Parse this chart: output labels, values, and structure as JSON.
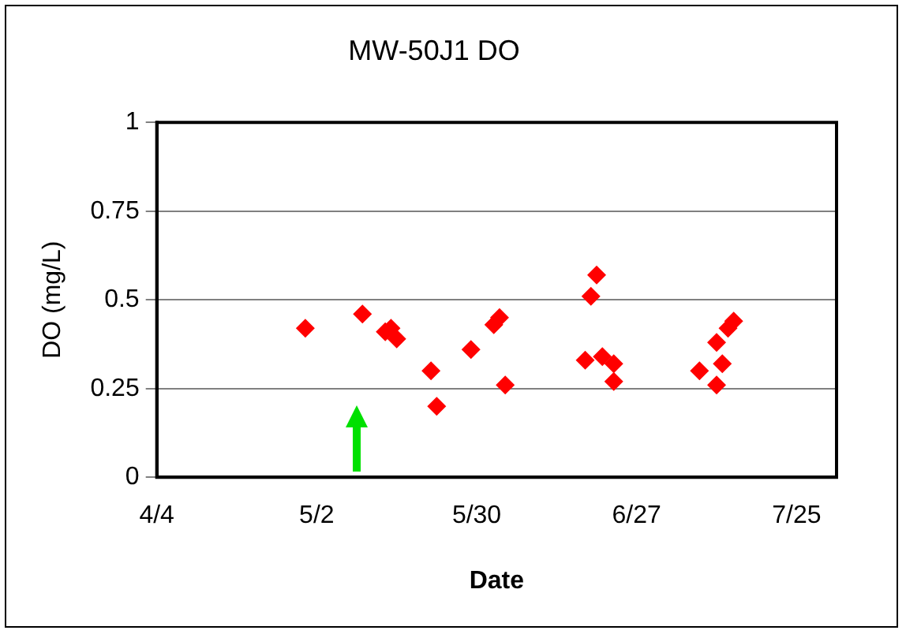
{
  "chart_data": {
    "type": "scatter",
    "title": "MW-50J1 DO",
    "xlabel": "Date",
    "ylabel": "DO (mg/L)",
    "x": [
      "--04-30",
      "--05-10",
      "--05-14",
      "--05-15",
      "--05-16",
      "--05-22",
      "--05-23",
      "--05-29",
      "--06-02",
      "--06-03",
      "--06-04",
      "--06-18",
      "--06-19",
      "--06-20",
      "--06-21",
      "--06-23",
      "--06-23",
      "--07-08",
      "--07-11",
      "--07-11",
      "--07-12",
      "--07-13",
      "--07-14"
    ],
    "series": [
      {
        "color": "#ff0000",
        "values": [
          0.42,
          0.46,
          0.41,
          0.42,
          0.39,
          0.3,
          0.2,
          0.36,
          0.43,
          0.45,
          0.26,
          0.33,
          0.51,
          0.57,
          0.34,
          0.32,
          0.27,
          0.3,
          0.26,
          0.38,
          0.32,
          0.42,
          0.44
        ]
      }
    ],
    "xlim": [
      "--04-04",
      "--08-01"
    ],
    "xticks": [
      {
        "value": "--04-04",
        "label": "4/4"
      },
      {
        "value": "--05-02",
        "label": "5/2"
      },
      {
        "value": "--05-30",
        "label": "5/30"
      },
      {
        "value": "--06-27",
        "label": "6/27"
      },
      {
        "value": "--07-25",
        "label": "7/25"
      }
    ],
    "ylim": [
      0,
      1
    ],
    "yticks": [
      0,
      0.25,
      0.5,
      0.75,
      1
    ],
    "grid": "y",
    "legend": false,
    "marker": "diamond"
  }
}
